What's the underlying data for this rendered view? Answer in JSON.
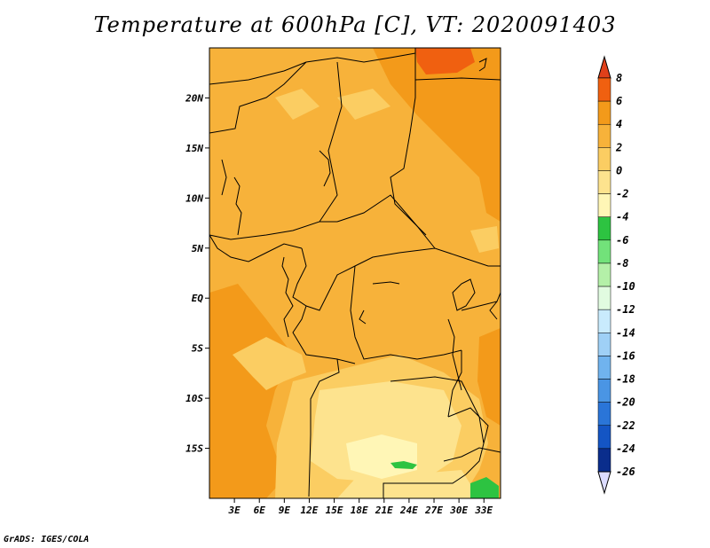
{
  "title": "Temperature at 600hPa [C], VT: 2020091403",
  "credit": "GrADS: IGES/COLA",
  "map": {
    "lon_range": [
      0,
      35
    ],
    "lat_range": [
      -20,
      25
    ],
    "x_ticks": [
      {
        "value": 3,
        "label": "3E"
      },
      {
        "value": 6,
        "label": "6E"
      },
      {
        "value": 9,
        "label": "9E"
      },
      {
        "value": 12,
        "label": "12E"
      },
      {
        "value": 15,
        "label": "15E"
      },
      {
        "value": 18,
        "label": "18E"
      },
      {
        "value": 21,
        "label": "21E"
      },
      {
        "value": 24,
        "label": "24E"
      },
      {
        "value": 27,
        "label": "27E"
      },
      {
        "value": 30,
        "label": "30E"
      },
      {
        "value": 33,
        "label": "33E"
      }
    ],
    "y_ticks": [
      {
        "value": 20,
        "label": "20N"
      },
      {
        "value": 15,
        "label": "15N"
      },
      {
        "value": 10,
        "label": "10N"
      },
      {
        "value": 5,
        "label": "5N"
      },
      {
        "value": 0,
        "label": "EQ"
      },
      {
        "value": -5,
        "label": "5S"
      },
      {
        "value": -10,
        "label": "10S"
      },
      {
        "value": -15,
        "label": "15S"
      }
    ]
  },
  "colorbar": {
    "levels": [
      "8",
      "6",
      "4",
      "2",
      "0",
      "-2",
      "-4",
      "-6",
      "-8",
      "-10",
      "-12",
      "-14",
      "-16",
      "-18",
      "-20",
      "-22",
      "-24",
      "-26"
    ],
    "colors": [
      "#e0401a",
      "#f06010",
      "#f39a1a",
      "#f7b23a",
      "#fbcd62",
      "#fde38e",
      "#fff6b6",
      "#2dc341",
      "#72e27a",
      "#b4f0a8",
      "#e1fbe0",
      "#c9ebfd",
      "#9fd0f6",
      "#70b3ee",
      "#4a95e4",
      "#2a75d8",
      "#1455c4",
      "#0a2d8c",
      "#0b0c50",
      "#dcdcff"
    ]
  },
  "fields": {
    "base": "#f7b23a",
    "warm": "#f39a1a",
    "hot": "#f06010",
    "cool": "#fbcd62",
    "cooler": "#fde38e",
    "coolest": "#fff6b6",
    "green": "#2dc341",
    "border": "#000000"
  }
}
